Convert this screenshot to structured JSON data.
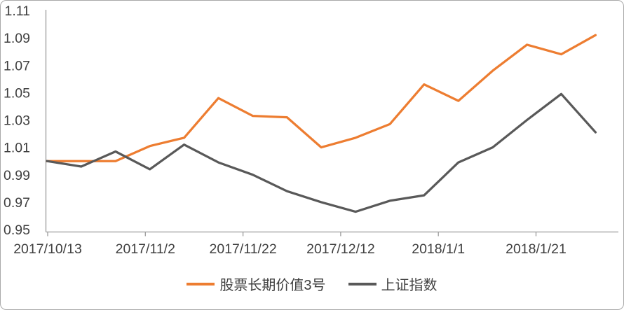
{
  "chart_data": {
    "type": "line",
    "title": "",
    "xlabel": "",
    "ylabel": "",
    "grid": false,
    "legend_position": "bottom",
    "ylim": [
      0.95,
      1.11
    ],
    "y_tick_labels": [
      "0.95",
      "0.97",
      "0.99",
      "1.01",
      "1.03",
      "1.05",
      "1.07",
      "1.09",
      "1.11"
    ],
    "x_tick_labels": [
      "2017/10/13",
      "2017/11/2",
      "2017/11/22",
      "2017/12/12",
      "2018/1/1",
      "2018/1/21"
    ],
    "categories": [
      "2017/10/13",
      "2017/10/20",
      "2017/10/27",
      "2017/11/3",
      "2017/11/10",
      "2017/11/17",
      "2017/11/24",
      "2017/12/1",
      "2017/12/8",
      "2017/12/15",
      "2017/12/22",
      "2017/12/29",
      "2018/1/5",
      "2018/1/12",
      "2018/1/19",
      "2018/1/26",
      "2018/2/2"
    ],
    "series": [
      {
        "name": "股票长期价值3号",
        "color": "#ED7D31",
        "values": [
          1.0,
          1.0,
          1.0,
          1.011,
          1.017,
          1.046,
          1.033,
          1.032,
          1.01,
          1.017,
          1.027,
          1.056,
          1.044,
          1.066,
          1.085,
          1.078,
          1.092
        ]
      },
      {
        "name": "上证指数",
        "color": "#595959",
        "values": [
          1.0,
          0.996,
          1.007,
          0.994,
          1.012,
          0.999,
          0.99,
          0.978,
          0.97,
          0.963,
          0.971,
          0.975,
          0.999,
          1.01,
          1.03,
          1.049,
          1.021
        ]
      }
    ]
  },
  "legend": {
    "series1": "股票长期价值3号",
    "series2": "上证指数"
  },
  "colors": {
    "series1": "#ED7D31",
    "series2": "#595959",
    "axis_line": "#9b9b9b",
    "tick_text": "#3f3f3f",
    "frame_border": "#a9a9a9"
  }
}
